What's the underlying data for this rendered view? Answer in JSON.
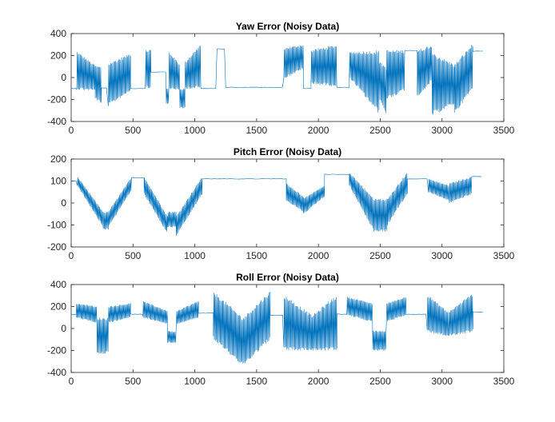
{
  "chart_data": [
    {
      "type": "line",
      "title": "Yaw Error (Noisy Data)",
      "xlabel": "",
      "ylabel": "",
      "xlim": [
        0,
        3500
      ],
      "ylim": [
        -400,
        400
      ],
      "x_ticks": [
        0,
        500,
        1000,
        1500,
        2000,
        2500,
        3000,
        3500
      ],
      "y_ticks": [
        -400,
        -200,
        0,
        200,
        400
      ],
      "line_color": "#0072BD",
      "grid": false,
      "segments": [
        {
          "x_start": 0,
          "x_end": 45,
          "kind": "flat",
          "level": -100
        },
        {
          "x_start": 45,
          "x_end": 195,
          "kind": "band",
          "upper": [
            240,
            110
          ],
          "lower": [
            -110,
            -120
          ]
        },
        {
          "x_start": 195,
          "x_end": 245,
          "kind": "band",
          "upper": [
            110,
            100
          ],
          "lower": [
            -190,
            -250
          ]
        },
        {
          "x_start": 245,
          "x_end": 300,
          "kind": "flat",
          "level": -95
        },
        {
          "x_start": 300,
          "x_end": 480,
          "kind": "band",
          "upper": [
            130,
            220
          ],
          "lower": [
            -260,
            -120
          ]
        },
        {
          "x_start": 480,
          "x_end": 600,
          "kind": "flat",
          "level": -100
        },
        {
          "x_start": 600,
          "x_end": 645,
          "kind": "band",
          "upper": [
            250,
            250
          ],
          "lower": [
            -100,
            -100
          ]
        },
        {
          "x_start": 645,
          "x_end": 770,
          "kind": "flat",
          "level": 50
        },
        {
          "x_start": 770,
          "x_end": 790,
          "kind": "band",
          "upper": [
            -100,
            -100
          ],
          "lower": [
            -240,
            -240
          ]
        },
        {
          "x_start": 790,
          "x_end": 880,
          "kind": "band",
          "upper": [
            240,
            120
          ],
          "lower": [
            -110,
            -110
          ]
        },
        {
          "x_start": 880,
          "x_end": 920,
          "kind": "band",
          "upper": [
            -100,
            -100
          ],
          "lower": [
            -280,
            -280
          ]
        },
        {
          "x_start": 920,
          "x_end": 1050,
          "kind": "band",
          "upper": [
            140,
            310
          ],
          "lower": [
            -100,
            -100
          ]
        },
        {
          "x_start": 1050,
          "x_end": 1180,
          "kind": "flat",
          "level": -100
        },
        {
          "x_start": 1180,
          "x_end": 1250,
          "kind": "flat",
          "level": 260
        },
        {
          "x_start": 1250,
          "x_end": 1720,
          "kind": "flat",
          "level": -90
        },
        {
          "x_start": 1720,
          "x_end": 1880,
          "kind": "band",
          "upper": [
            270,
            300
          ],
          "lower": [
            -10,
            80
          ]
        },
        {
          "x_start": 1880,
          "x_end": 1940,
          "kind": "flat",
          "level": -100
        },
        {
          "x_start": 1940,
          "x_end": 2150,
          "kind": "band",
          "upper": [
            250,
            300
          ],
          "lower": [
            -60,
            -80
          ]
        },
        {
          "x_start": 2150,
          "x_end": 2250,
          "kind": "flat",
          "level": -90
        },
        {
          "x_start": 2250,
          "x_end": 2490,
          "kind": "band",
          "upper": [
            230,
            250
          ],
          "lower": [
            0,
            -330
          ]
        },
        {
          "x_start": 2490,
          "x_end": 2550,
          "kind": "band",
          "upper": [
            150,
            100
          ],
          "lower": [
            -180,
            -350
          ]
        },
        {
          "x_start": 2550,
          "x_end": 2700,
          "kind": "band",
          "upper": [
            250,
            250
          ],
          "lower": [
            -200,
            -120
          ]
        },
        {
          "x_start": 2700,
          "x_end": 2800,
          "kind": "flat",
          "level": 245
        },
        {
          "x_start": 2800,
          "x_end": 2920,
          "kind": "band",
          "upper": [
            250,
            300
          ],
          "lower": [
            -180,
            -30
          ]
        },
        {
          "x_start": 2920,
          "x_end": 3100,
          "kind": "band",
          "upper": [
            230,
            120
          ],
          "lower": [
            -350,
            -240
          ]
        },
        {
          "x_start": 3100,
          "x_end": 3250,
          "kind": "band",
          "upper": [
            120,
            310
          ],
          "lower": [
            -330,
            -100
          ]
        },
        {
          "x_start": 3250,
          "x_end": 3330,
          "kind": "flat",
          "level": 240
        }
      ]
    },
    {
      "type": "line",
      "title": "Pitch Error (Noisy Data)",
      "xlabel": "",
      "ylabel": "",
      "xlim": [
        0,
        3500
      ],
      "ylim": [
        -200,
        200
      ],
      "x_ticks": [
        0,
        500,
        1000,
        1500,
        2000,
        2500,
        3000,
        3500
      ],
      "y_ticks": [
        -200,
        -100,
        0,
        100,
        200
      ],
      "line_color": "#0072BD",
      "grid": false,
      "segments": [
        {
          "x_start": 0,
          "x_end": 50,
          "kind": "flat",
          "level": 100
        },
        {
          "x_start": 50,
          "x_end": 260,
          "kind": "band",
          "upper": [
            120,
            -40
          ],
          "lower": [
            80,
            -110
          ]
        },
        {
          "x_start": 260,
          "x_end": 300,
          "kind": "band",
          "upper": [
            -40,
            -40
          ],
          "lower": [
            -120,
            -120
          ]
        },
        {
          "x_start": 300,
          "x_end": 490,
          "kind": "band",
          "upper": [
            -40,
            120
          ],
          "lower": [
            -110,
            60
          ]
        },
        {
          "x_start": 490,
          "x_end": 590,
          "kind": "flat",
          "level": 115
        },
        {
          "x_start": 590,
          "x_end": 780,
          "kind": "band",
          "upper": [
            120,
            -60
          ],
          "lower": [
            40,
            -140
          ]
        },
        {
          "x_start": 780,
          "x_end": 850,
          "kind": "band",
          "upper": [
            -40,
            -40
          ],
          "lower": [
            -110,
            -110
          ]
        },
        {
          "x_start": 850,
          "x_end": 1060,
          "kind": "band",
          "upper": [
            -60,
            120
          ],
          "lower": [
            -150,
            40
          ]
        },
        {
          "x_start": 1060,
          "x_end": 1740,
          "kind": "flat",
          "level": 110
        },
        {
          "x_start": 1740,
          "x_end": 1880,
          "kind": "band",
          "upper": [
            90,
            30
          ],
          "lower": [
            10,
            -40
          ]
        },
        {
          "x_start": 1880,
          "x_end": 2050,
          "kind": "band",
          "upper": [
            20,
            80
          ],
          "lower": [
            -50,
            30
          ]
        },
        {
          "x_start": 2050,
          "x_end": 2250,
          "kind": "flat",
          "level": 130
        },
        {
          "x_start": 2250,
          "x_end": 2450,
          "kind": "band",
          "upper": [
            140,
            20
          ],
          "lower": [
            80,
            -130
          ]
        },
        {
          "x_start": 2450,
          "x_end": 2560,
          "kind": "band",
          "upper": [
            20,
            20
          ],
          "lower": [
            -130,
            -130
          ]
        },
        {
          "x_start": 2560,
          "x_end": 2720,
          "kind": "band",
          "upper": [
            20,
            140
          ],
          "lower": [
            -100,
            40
          ]
        },
        {
          "x_start": 2720,
          "x_end": 2890,
          "kind": "flat",
          "level": 110
        },
        {
          "x_start": 2890,
          "x_end": 3060,
          "kind": "band",
          "upper": [
            110,
            80
          ],
          "lower": [
            50,
            10
          ]
        },
        {
          "x_start": 3060,
          "x_end": 3240,
          "kind": "band",
          "upper": [
            90,
            120
          ],
          "lower": [
            0,
            40
          ]
        },
        {
          "x_start": 3240,
          "x_end": 3330,
          "kind": "flat",
          "level": 120
        }
      ]
    },
    {
      "type": "line",
      "title": "Roll Error (Noisy Data)",
      "xlabel": "",
      "ylabel": "",
      "xlim": [
        0,
        3500
      ],
      "ylim": [
        -400,
        400
      ],
      "x_ticks": [
        0,
        500,
        1000,
        1500,
        2000,
        2500,
        3000,
        3500
      ],
      "y_ticks": [
        -400,
        -200,
        0,
        200,
        400
      ],
      "line_color": "#0072BD",
      "grid": false,
      "segments": [
        {
          "x_start": 0,
          "x_end": 40,
          "kind": "flat",
          "level": 130
        },
        {
          "x_start": 40,
          "x_end": 210,
          "kind": "band",
          "upper": [
            230,
            200
          ],
          "lower": [
            100,
            50
          ]
        },
        {
          "x_start": 210,
          "x_end": 300,
          "kind": "band",
          "upper": [
            100,
            100
          ],
          "lower": [
            -230,
            -230
          ]
        },
        {
          "x_start": 300,
          "x_end": 480,
          "kind": "band",
          "upper": [
            200,
            230
          ],
          "lower": [
            50,
            100
          ]
        },
        {
          "x_start": 480,
          "x_end": 580,
          "kind": "flat",
          "level": 130
        },
        {
          "x_start": 580,
          "x_end": 780,
          "kind": "band",
          "upper": [
            250,
            160
          ],
          "lower": [
            100,
            40
          ]
        },
        {
          "x_start": 780,
          "x_end": 850,
          "kind": "band",
          "upper": [
            -20,
            -30
          ],
          "lower": [
            -130,
            -130
          ]
        },
        {
          "x_start": 850,
          "x_end": 1030,
          "kind": "band",
          "upper": [
            160,
            250
          ],
          "lower": [
            40,
            100
          ]
        },
        {
          "x_start": 1030,
          "x_end": 1150,
          "kind": "flat",
          "level": 140
        },
        {
          "x_start": 1150,
          "x_end": 1390,
          "kind": "band",
          "upper": [
            340,
            100
          ],
          "lower": [
            -100,
            -340
          ]
        },
        {
          "x_start": 1390,
          "x_end": 1610,
          "kind": "band",
          "upper": [
            100,
            340
          ],
          "lower": [
            -340,
            -100
          ]
        },
        {
          "x_start": 1610,
          "x_end": 1720,
          "kind": "flat",
          "level": 120
        },
        {
          "x_start": 1720,
          "x_end": 1950,
          "kind": "band",
          "upper": [
            310,
            120
          ],
          "lower": [
            -200,
            -200
          ]
        },
        {
          "x_start": 1950,
          "x_end": 2150,
          "kind": "band",
          "upper": [
            120,
            310
          ],
          "lower": [
            -200,
            -200
          ]
        },
        {
          "x_start": 2150,
          "x_end": 2230,
          "kind": "flat",
          "level": 130
        },
        {
          "x_start": 2230,
          "x_end": 2440,
          "kind": "band",
          "upper": [
            290,
            230
          ],
          "lower": [
            120,
            60
          ]
        },
        {
          "x_start": 2440,
          "x_end": 2550,
          "kind": "band",
          "upper": [
            -20,
            -20
          ],
          "lower": [
            -200,
            -200
          ]
        },
        {
          "x_start": 2550,
          "x_end": 2710,
          "kind": "band",
          "upper": [
            230,
            290
          ],
          "lower": [
            60,
            120
          ]
        },
        {
          "x_start": 2710,
          "x_end": 2880,
          "kind": "flat",
          "level": 130
        },
        {
          "x_start": 2880,
          "x_end": 3050,
          "kind": "band",
          "upper": [
            310,
            150
          ],
          "lower": [
            -30,
            -70
          ]
        },
        {
          "x_start": 3050,
          "x_end": 3250,
          "kind": "band",
          "upper": [
            150,
            320
          ],
          "lower": [
            -70,
            -30
          ]
        },
        {
          "x_start": 3250,
          "x_end": 3330,
          "kind": "flat",
          "level": 150
        }
      ]
    }
  ]
}
